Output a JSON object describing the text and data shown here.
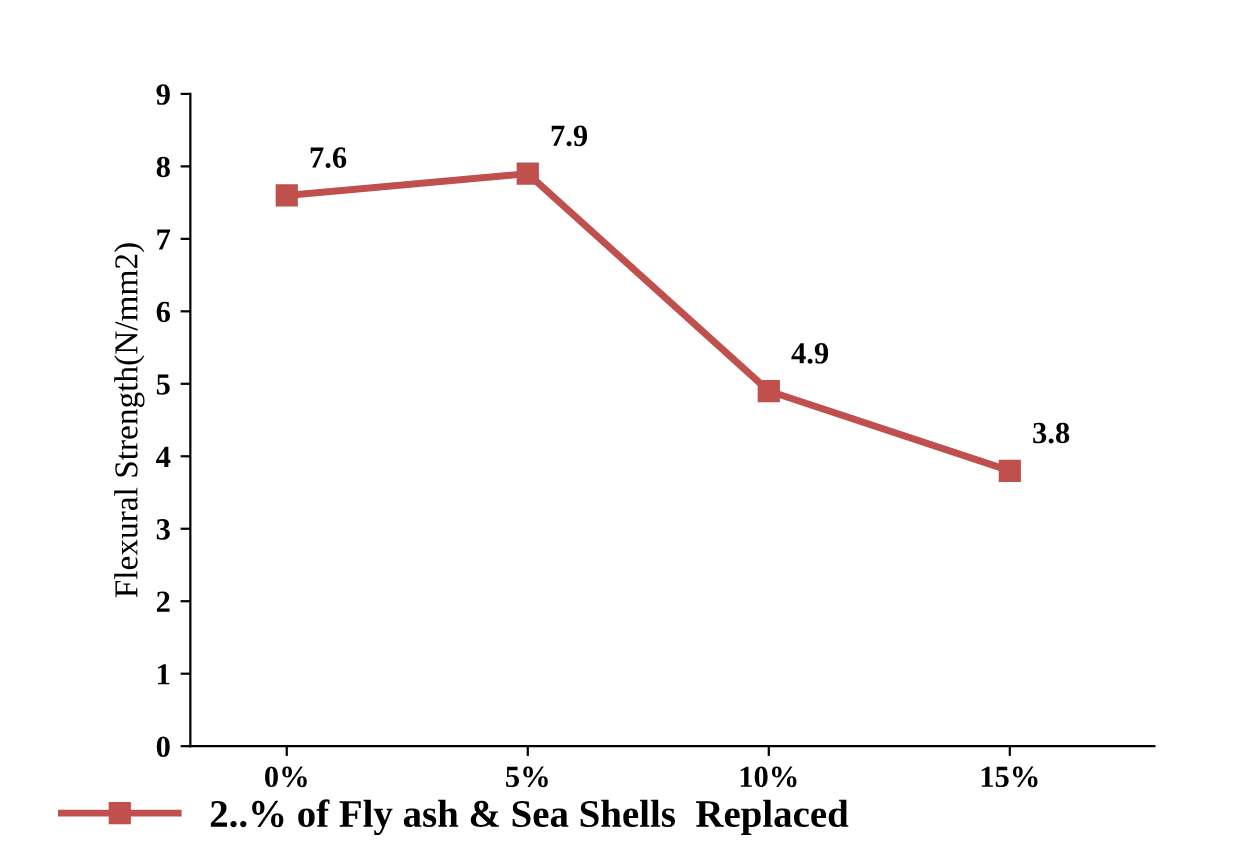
{
  "chart_data": {
    "type": "line",
    "ylabel": "Flexural Strength(N/mm2)",
    "categories": [
      "0%",
      "5%",
      "10%",
      "15%"
    ],
    "series": [
      {
        "name": "2..% of Fly ash & Sea Shells  Replaced",
        "color": "#c0504d",
        "values": [
          7.6,
          7.9,
          4.9,
          3.8
        ]
      }
    ],
    "ylim": [
      0,
      9
    ],
    "yticks": [
      0,
      1,
      2,
      3,
      4,
      5,
      6,
      7,
      8,
      9
    ],
    "marker": "square",
    "data_labels": true,
    "legend": "bottom",
    "grid": false
  }
}
